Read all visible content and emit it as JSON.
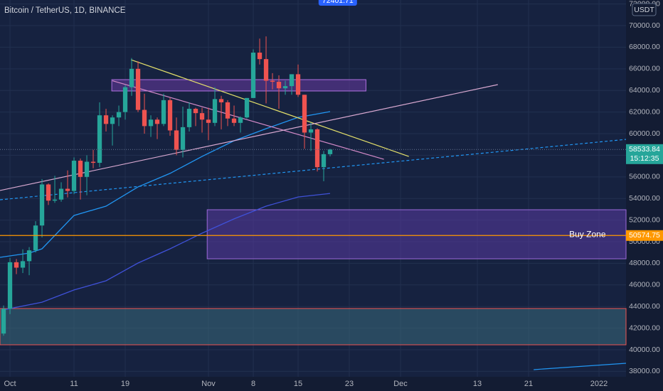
{
  "chart_data": {
    "type": "candlestick",
    "title": "Bitcoin / TetherUS, 1D, BINANCE",
    "currency": "USDT",
    "xlim": [
      -1.56,
      96.22
    ],
    "ylim": [
      37500,
      72370
    ],
    "xticks": [
      {
        "value": 0,
        "label": "Oct"
      },
      {
        "value": 10,
        "label": "11"
      },
      {
        "value": 18,
        "label": "19"
      },
      {
        "value": 31,
        "label": "Nov"
      },
      {
        "value": 38,
        "label": "8"
      },
      {
        "value": 45,
        "label": "15"
      },
      {
        "value": 53,
        "label": "23"
      },
      {
        "value": 61,
        "label": "Dec"
      },
      {
        "value": 73,
        "label": "13"
      },
      {
        "value": 81,
        "label": "21"
      },
      {
        "value": 92,
        "label": "2022"
      }
    ],
    "yticks": [
      {
        "value": 38000,
        "label": "38000.00"
      },
      {
        "value": 40000,
        "label": "40000.00"
      },
      {
        "value": 42000,
        "label": "42000.00"
      },
      {
        "value": 44000,
        "label": "44000.00"
      },
      {
        "value": 46000,
        "label": "46000.00"
      },
      {
        "value": 48000,
        "label": "48000.00"
      },
      {
        "value": 50000,
        "label": "50000.00"
      },
      {
        "value": 52000,
        "label": "52000.00"
      },
      {
        "value": 54000,
        "label": "54000.00"
      },
      {
        "value": 56000,
        "label": "56000.00"
      },
      {
        "value": 58000,
        "label": "58000.00"
      },
      {
        "value": 60000,
        "label": "60000.00"
      },
      {
        "value": 62000,
        "label": "62000.00"
      },
      {
        "value": 64000,
        "label": "64000.00"
      },
      {
        "value": 66000,
        "label": "66000.00"
      },
      {
        "value": 68000,
        "label": "68000.00"
      },
      {
        "value": 70000,
        "label": "70000.00"
      },
      {
        "value": 72000,
        "label": "72000.00"
      }
    ],
    "grid": true,
    "up_color": "#26a69a",
    "down_color": "#ef5350",
    "candles": {
      "x": [
        -1,
        0,
        1,
        2,
        3,
        4,
        5,
        6,
        7,
        8,
        9,
        10,
        11,
        12,
        13,
        14,
        15,
        16,
        17,
        18,
        19,
        20,
        21,
        22,
        23,
        24,
        25,
        26,
        27,
        28,
        29,
        30,
        31,
        32,
        33,
        34,
        35,
        36,
        37,
        38,
        39,
        40,
        41,
        42,
        43,
        44,
        45,
        46,
        47,
        48,
        49,
        50
      ],
      "open": [
        41500,
        43800,
        48100,
        47600,
        48200,
        49200,
        51500,
        55300,
        53800,
        53900,
        54900,
        54700,
        57500,
        56000,
        57400,
        57300,
        61700,
        60900,
        61500,
        62000,
        64300,
        66000,
        62200,
        60700,
        61300,
        60900,
        63100,
        60300,
        58500,
        60600,
        62300,
        61900,
        61300,
        61000,
        63200,
        62900,
        61400,
        61000,
        61500,
        63300,
        67500,
        66900,
        64900,
        64800,
        64200,
        64400,
        65500,
        63600,
        60100,
        60400,
        56900,
        58100
      ],
      "high": [
        44100,
        48500,
        48400,
        49300,
        49500,
        51900,
        55800,
        55400,
        56100,
        55500,
        56600,
        57800,
        57700,
        58000,
        58500,
        62900,
        62300,
        61700,
        62600,
        64500,
        67000,
        66700,
        63700,
        61700,
        61500,
        63700,
        63300,
        61500,
        62500,
        62900,
        62400,
        62400,
        62400,
        64300,
        63500,
        63100,
        62600,
        61600,
        63300,
        67800,
        68800,
        69000,
        65600,
        65400,
        64900,
        65500,
        66400,
        63600,
        61000,
        60500,
        58400,
        58600
      ],
      "low": [
        41300,
        43300,
        47000,
        47100,
        46900,
        49000,
        50400,
        53400,
        53600,
        53700,
        54100,
        54400,
        53900,
        54300,
        56800,
        56900,
        60200,
        58900,
        60700,
        61300,
        63500,
        62000,
        60000,
        59700,
        59500,
        60700,
        59800,
        58000,
        57800,
        60200,
        60700,
        60100,
        59400,
        60700,
        60400,
        60700,
        60700,
        60100,
        61400,
        63300,
        66400,
        62800,
        64100,
        62300,
        63600,
        63600,
        63400,
        58600,
        58400,
        56500,
        55600,
        57900
      ],
      "close": [
        43800,
        48100,
        47600,
        48200,
        49200,
        51500,
        55300,
        53800,
        53900,
        54900,
        54700,
        57500,
        56000,
        57400,
        57300,
        61700,
        60900,
        61500,
        62000,
        64300,
        66000,
        62200,
        60700,
        61300,
        60900,
        63100,
        60300,
        58500,
        60600,
        62300,
        61900,
        61300,
        61000,
        63200,
        62900,
        61400,
        61000,
        61500,
        63300,
        67500,
        66900,
        64900,
        64800,
        64200,
        64400,
        65500,
        63600,
        60100,
        60400,
        56900,
        58100,
        58533.84
      ]
    },
    "moving_averages": [
      {
        "color": "#2196f3",
        "x": [
          -1.56,
          3,
          5,
          10,
          15,
          20,
          25,
          30,
          35,
          40,
          45,
          50
        ],
        "values": [
          48550,
          48950,
          49340,
          52430,
          53290,
          55070,
          56320,
          57890,
          59340,
          60460,
          61510,
          62040
        ]
      },
      {
        "color": "#3f51d8",
        "x": [
          -1,
          5,
          10,
          15,
          20,
          25,
          30,
          35,
          40,
          45,
          50
        ],
        "values": [
          43700,
          44400,
          45530,
          46380,
          48030,
          49340,
          50790,
          52110,
          53290,
          54140,
          54470
        ]
      }
    ],
    "zones": [
      {
        "x": [
          -1.56,
          96.22
        ],
        "y": [
          40460,
          43820
        ],
        "fill": "#3a6a7a",
        "stroke": "#ef5350"
      },
      {
        "x": [
          30.8,
          96.22
        ],
        "y": [
          48420,
          52960
        ],
        "fill": "#5a3aa0",
        "stroke": "#9c6ad8"
      },
      {
        "x": [
          15.9,
          55.6
        ],
        "y": [
          63950,
          65000
        ],
        "fill": "#6a3aa0",
        "stroke": "#b070e0"
      }
    ],
    "trendlines": [
      {
        "x": [
          18.9,
          62.3
        ],
        "y": [
          66842,
          57895
        ],
        "color": "#e4e06a",
        "dash": false
      },
      {
        "x": [
          16,
          58.4
        ],
        "y": [
          64900,
          57630
        ],
        "color": "#d48ac8",
        "dash": false
      },
      {
        "x": [
          -1.56,
          76.2
        ],
        "y": [
          54740,
          64540
        ],
        "color": "#d8a8d0",
        "dash": false
      },
      {
        "x": [
          -1.56,
          96.22
        ],
        "y": [
          53880,
          59470
        ],
        "color": "#2196f3",
        "dash": true
      },
      {
        "x": [
          81.8,
          96.22
        ],
        "y": [
          38160,
          38750
        ],
        "color": "#2196f3",
        "dash": false
      }
    ],
    "price_lines": [
      {
        "value": 58533.84,
        "color": "#26a69a",
        "countdown": "15:12:35"
      },
      {
        "value": 50574.75,
        "color": "#ff9800"
      }
    ],
    "annotations": [
      {
        "text": "Buy Zone",
        "x": 90.2,
        "y": 50640
      }
    ],
    "high_marker": {
      "value": 72401.71,
      "x": 51.2
    }
  }
}
